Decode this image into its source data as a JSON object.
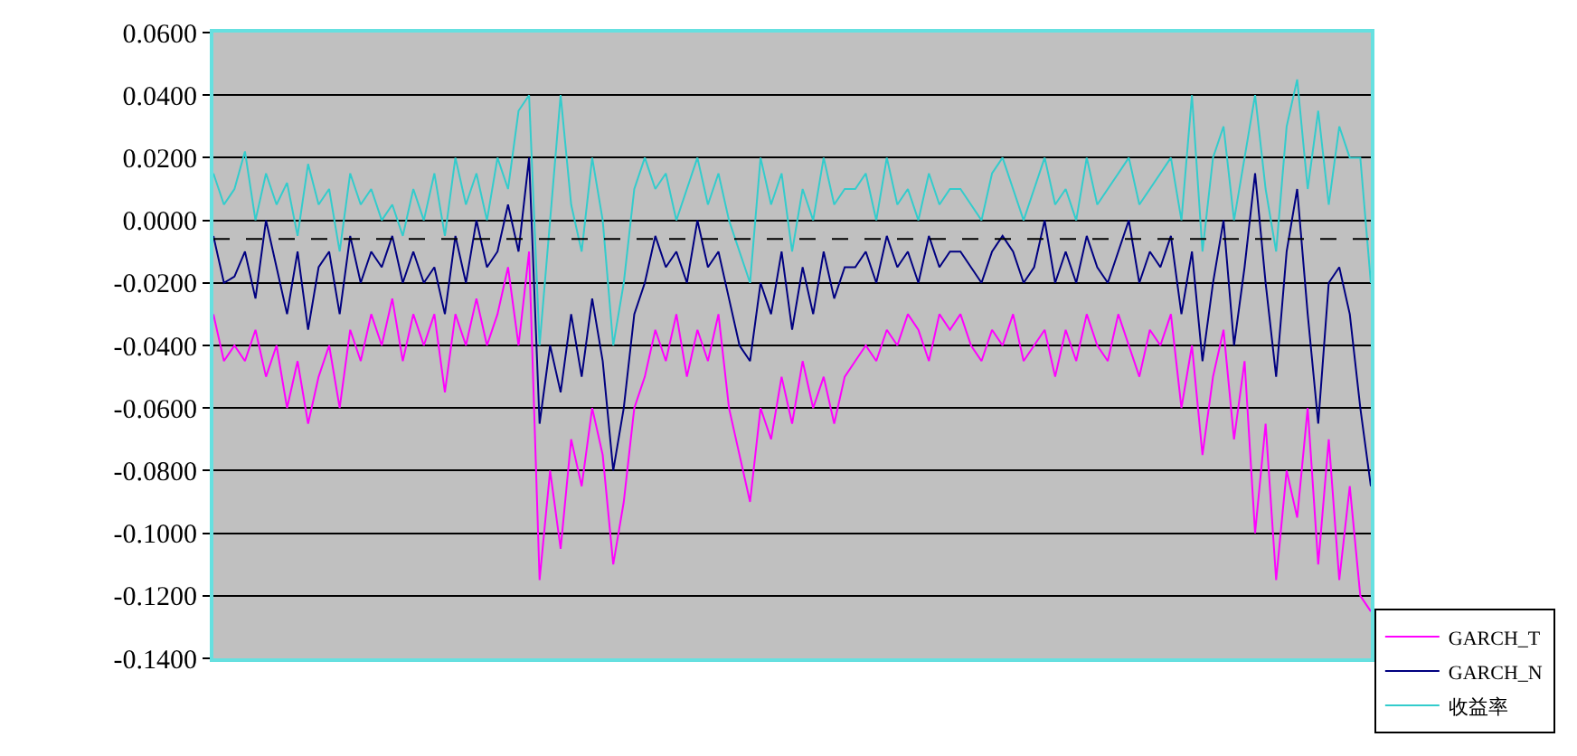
{
  "chart_data": {
    "type": "line",
    "categories": [
      null,
      null,
      null,
      null,
      null,
      null,
      null,
      null,
      null,
      null,
      null,
      null,
      null,
      null,
      null,
      null,
      null,
      null,
      null,
      null,
      null,
      null,
      null,
      null,
      null,
      null,
      null,
      null,
      null,
      null,
      null,
      null,
      null,
      null,
      null,
      null,
      null,
      null,
      null,
      null,
      null,
      null,
      null,
      null,
      null,
      null,
      null,
      null,
      null,
      null,
      null,
      null,
      null,
      null,
      null,
      null,
      null,
      null,
      null,
      null,
      null,
      null,
      null,
      null,
      null,
      null,
      null,
      null,
      null,
      null,
      null,
      null,
      null,
      null,
      null,
      null,
      null,
      null,
      null,
      null,
      null,
      null,
      null,
      null,
      null,
      null,
      null,
      null,
      null,
      null,
      null,
      null,
      null,
      null,
      null,
      null,
      null,
      null,
      null,
      null,
      null,
      null,
      null,
      null,
      null,
      null,
      null,
      null,
      null,
      null,
      null
    ],
    "series": [
      {
        "name": "GARCH_T",
        "color": "#ff00ff",
        "values": [
          -0.03,
          -0.045,
          -0.04,
          -0.045,
          -0.035,
          -0.05,
          -0.04,
          -0.06,
          -0.045,
          -0.065,
          -0.05,
          -0.04,
          -0.06,
          -0.035,
          -0.045,
          -0.03,
          -0.04,
          -0.025,
          -0.045,
          -0.03,
          -0.04,
          -0.03,
          -0.055,
          -0.03,
          -0.04,
          -0.025,
          -0.04,
          -0.03,
          -0.015,
          -0.04,
          -0.01,
          -0.115,
          -0.08,
          -0.105,
          -0.07,
          -0.085,
          -0.06,
          -0.075,
          -0.11,
          -0.09,
          -0.06,
          -0.05,
          -0.035,
          -0.045,
          -0.03,
          -0.05,
          -0.035,
          -0.045,
          -0.03,
          -0.06,
          -0.075,
          -0.09,
          -0.06,
          -0.07,
          -0.05,
          -0.065,
          -0.045,
          -0.06,
          -0.05,
          -0.065,
          -0.05,
          -0.045,
          -0.04,
          -0.045,
          -0.035,
          -0.04,
          -0.03,
          -0.035,
          -0.045,
          -0.03,
          -0.035,
          -0.03,
          -0.04,
          -0.045,
          -0.035,
          -0.04,
          -0.03,
          -0.045,
          -0.04,
          -0.035,
          -0.05,
          -0.035,
          -0.045,
          -0.03,
          -0.04,
          -0.045,
          -0.03,
          -0.04,
          -0.05,
          -0.035,
          -0.04,
          -0.03,
          -0.06,
          -0.04,
          -0.075,
          -0.05,
          -0.035,
          -0.07,
          -0.045,
          -0.1,
          -0.065,
          -0.115,
          -0.08,
          -0.095,
          -0.06,
          -0.11,
          -0.07,
          -0.115,
          -0.085,
          -0.12,
          -0.125
        ]
      },
      {
        "name": "GARCH_N",
        "color": "#000080",
        "values": [
          -0.005,
          -0.02,
          -0.018,
          -0.01,
          -0.025,
          0.0,
          -0.015,
          -0.03,
          -0.01,
          -0.035,
          -0.015,
          -0.01,
          -0.03,
          -0.005,
          -0.02,
          -0.01,
          -0.015,
          -0.005,
          -0.02,
          -0.01,
          -0.02,
          -0.015,
          -0.03,
          -0.005,
          -0.02,
          0.0,
          -0.015,
          -0.01,
          0.005,
          -0.01,
          0.02,
          -0.065,
          -0.04,
          -0.055,
          -0.03,
          -0.05,
          -0.025,
          -0.045,
          -0.08,
          -0.06,
          -0.03,
          -0.02,
          -0.005,
          -0.015,
          -0.01,
          -0.02,
          0.0,
          -0.015,
          -0.01,
          -0.025,
          -0.04,
          -0.045,
          -0.02,
          -0.03,
          -0.01,
          -0.035,
          -0.015,
          -0.03,
          -0.01,
          -0.025,
          -0.015,
          -0.015,
          -0.01,
          -0.02,
          -0.005,
          -0.015,
          -0.01,
          -0.02,
          -0.005,
          -0.015,
          -0.01,
          -0.01,
          -0.015,
          -0.02,
          -0.01,
          -0.005,
          -0.01,
          -0.02,
          -0.015,
          0.0,
          -0.02,
          -0.01,
          -0.02,
          -0.005,
          -0.015,
          -0.02,
          -0.01,
          0.0,
          -0.02,
          -0.01,
          -0.015,
          -0.005,
          -0.03,
          -0.01,
          -0.045,
          -0.02,
          0.0,
          -0.04,
          -0.015,
          0.015,
          -0.02,
          -0.05,
          -0.01,
          0.01,
          -0.03,
          -0.065,
          -0.02,
          -0.015,
          -0.03,
          -0.06,
          -0.085
        ]
      },
      {
        "name": "收益率",
        "color": "#33cccc",
        "values": [
          0.015,
          0.005,
          0.01,
          0.022,
          0.0,
          0.015,
          0.005,
          0.012,
          -0.005,
          0.018,
          0.005,
          0.01,
          -0.01,
          0.015,
          0.005,
          0.01,
          0.0,
          0.005,
          -0.005,
          0.01,
          0.0,
          0.015,
          -0.005,
          0.02,
          0.005,
          0.015,
          0.0,
          0.02,
          0.01,
          0.035,
          0.04,
          -0.04,
          0.0,
          0.04,
          0.005,
          -0.01,
          0.02,
          0.0,
          -0.04,
          -0.02,
          0.01,
          0.02,
          0.01,
          0.015,
          0.0,
          0.01,
          0.02,
          0.005,
          0.015,
          0.0,
          -0.01,
          -0.02,
          0.02,
          0.005,
          0.015,
          -0.01,
          0.01,
          0.0,
          0.02,
          0.005,
          0.01,
          0.01,
          0.015,
          0.0,
          0.02,
          0.005,
          0.01,
          0.0,
          0.015,
          0.005,
          0.01,
          0.01,
          0.005,
          0.0,
          0.015,
          0.02,
          0.01,
          0.0,
          0.01,
          0.02,
          0.005,
          0.01,
          0.0,
          0.02,
          0.005,
          0.01,
          0.015,
          0.02,
          0.005,
          0.01,
          0.015,
          0.02,
          0.0,
          0.04,
          -0.01,
          0.02,
          0.03,
          0.0,
          0.02,
          0.04,
          0.01,
          -0.01,
          0.03,
          0.045,
          0.01,
          0.035,
          0.005,
          0.03,
          0.02,
          0.02,
          -0.02
        ]
      }
    ],
    "ylim": [
      -0.14,
      0.06
    ],
    "yticks": [
      {
        "value": 0.06,
        "label": "0.0600"
      },
      {
        "value": 0.04,
        "label": "0.0400"
      },
      {
        "value": 0.02,
        "label": "0.0200"
      },
      {
        "value": 0.0,
        "label": "0.0000"
      },
      {
        "value": -0.02,
        "label": "-0.0200"
      },
      {
        "value": -0.04,
        "label": "-0.0400"
      },
      {
        "value": -0.06,
        "label": "-0.0600"
      },
      {
        "value": -0.08,
        "label": "-0.0800"
      },
      {
        "value": -0.1,
        "label": "-0.1000"
      },
      {
        "value": -0.12,
        "label": "-0.1200"
      },
      {
        "value": -0.14,
        "label": "-0.1400"
      }
    ],
    "ref_lines": [
      {
        "axis": "y",
        "value": -0.006,
        "color": "#000000",
        "line_style": "dashed"
      }
    ],
    "grid": "y",
    "legend": "bottom right",
    "tick_labels": "y",
    "marker": "none",
    "line_style": "solid"
  }
}
